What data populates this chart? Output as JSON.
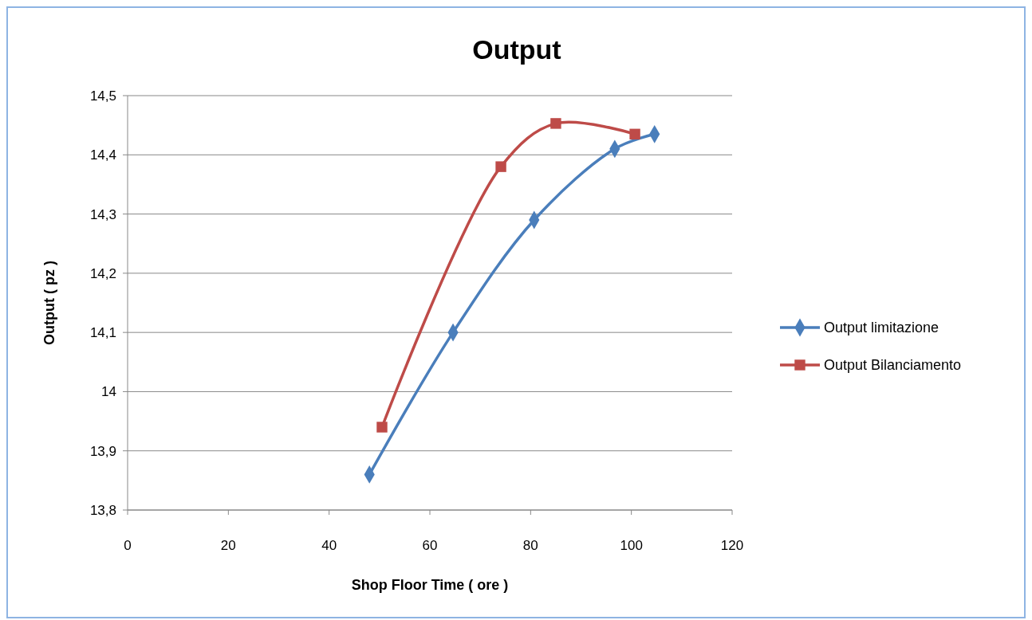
{
  "chart_data": {
    "type": "line",
    "title": "Output",
    "xlabel": "Shop Floor Time  ( ore )",
    "ylabel": "Output  ( pz )",
    "xlim": [
      0,
      120
    ],
    "xticks": [
      0,
      20,
      40,
      60,
      80,
      100,
      120
    ],
    "ylim": [
      13.8,
      14.5
    ],
    "yticks": [
      {
        "value": 13.8,
        "label": "13,8"
      },
      {
        "value": 13.9,
        "label": "13,9"
      },
      14,
      {
        "value": 14.1,
        "label": "14,1"
      },
      {
        "value": 14.2,
        "label": "14,2"
      },
      {
        "value": 14.3,
        "label": "14,3"
      },
      {
        "value": 14.4,
        "label": "14,4"
      },
      {
        "value": 14.5,
        "label": "14,5"
      }
    ],
    "grid": "y",
    "legend": "right",
    "series": [
      {
        "name": "Output limitazione",
        "color": "#4a7ebb",
        "marker": "diamond",
        "x": [
          48,
          64.6,
          80.7,
          96.7,
          104.6
        ],
        "values": [
          13.86,
          14.1,
          14.29,
          14.41,
          14.435
        ]
      },
      {
        "name": "Output Bilanciamento",
        "color": "#be4b48",
        "marker": "square",
        "x": [
          50.5,
          74.1,
          85,
          100.7
        ],
        "values": [
          13.94,
          14.38,
          14.453,
          14.435
        ]
      }
    ]
  }
}
